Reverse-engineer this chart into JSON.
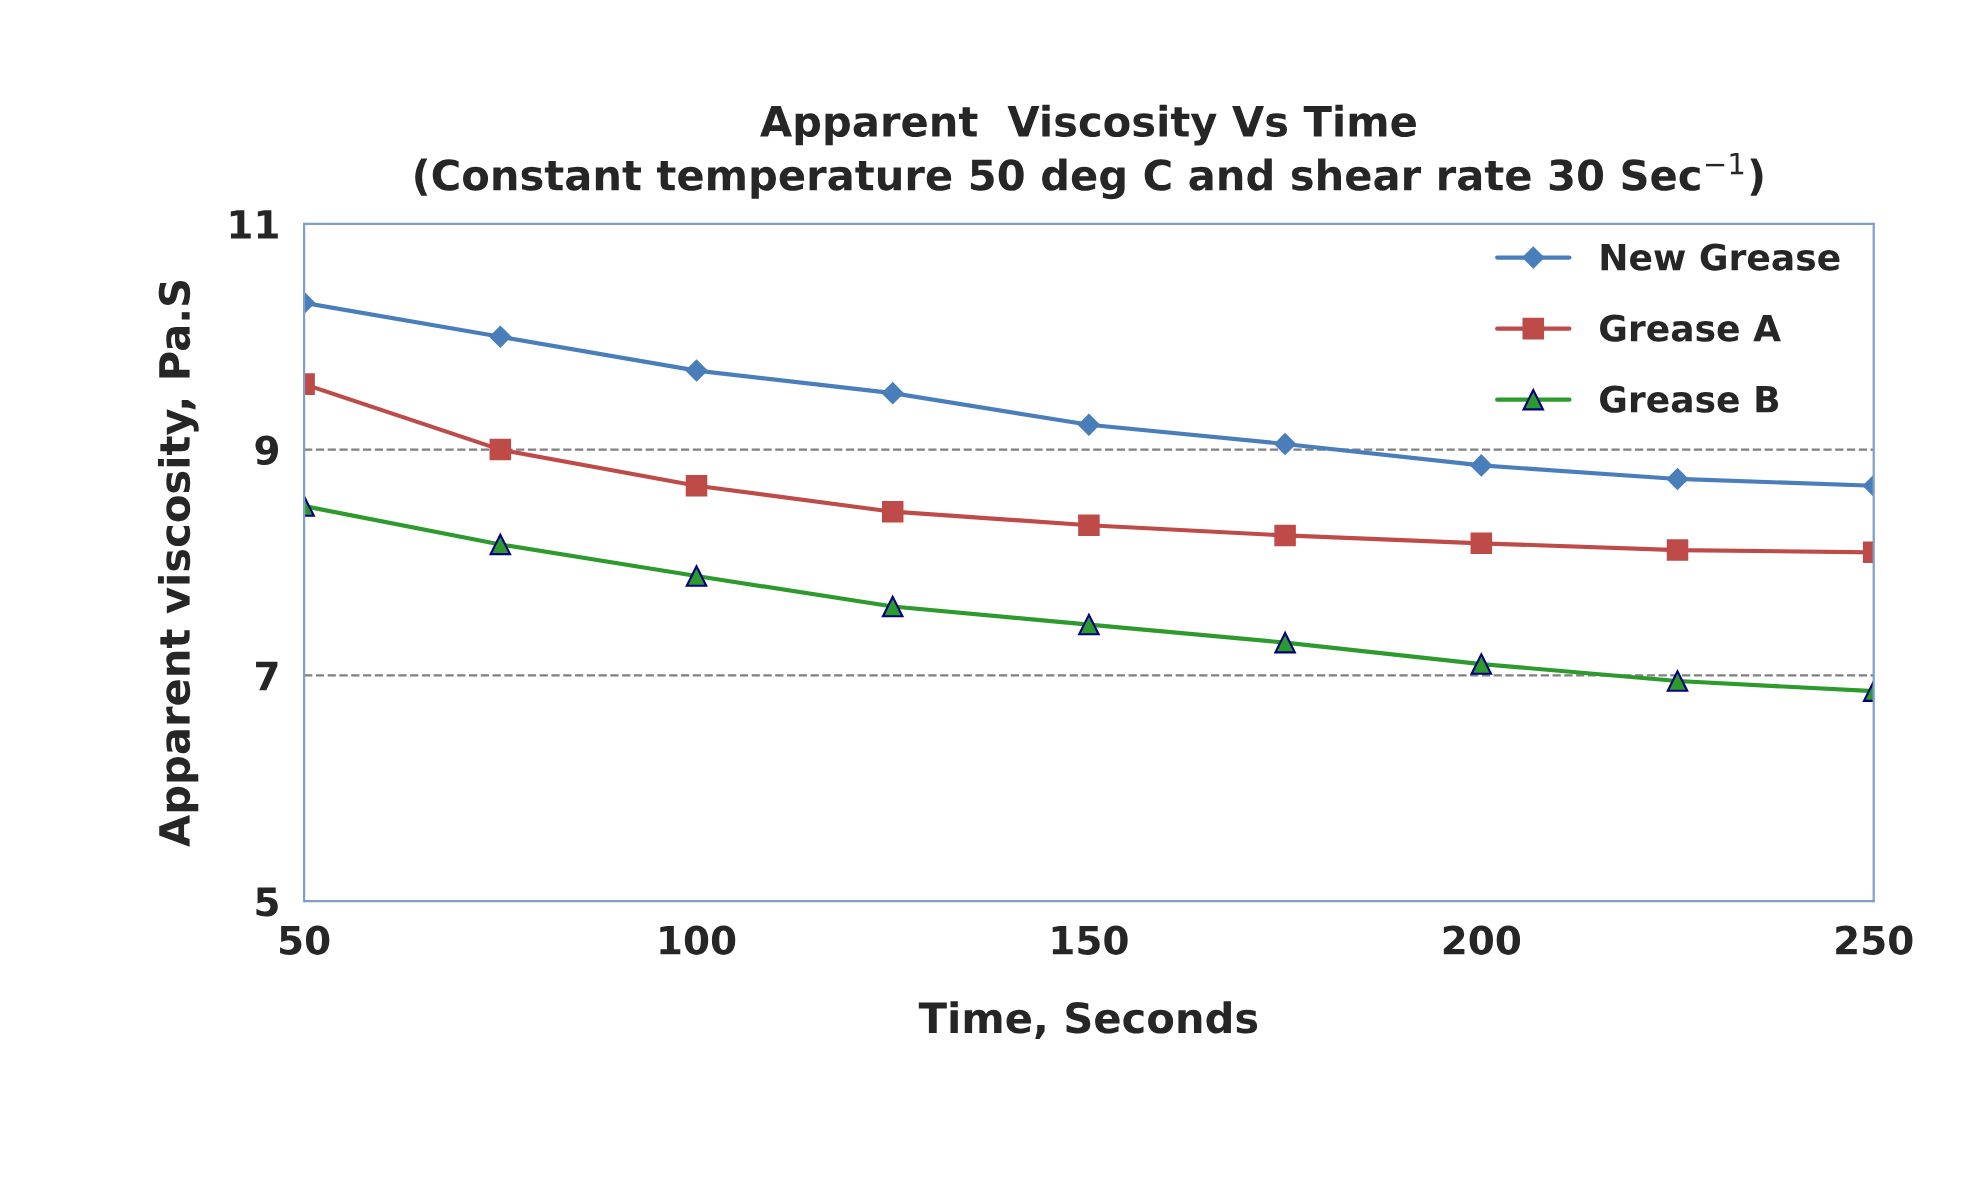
{
  "chart_data": {
    "type": "line",
    "title": "Apparent  Viscosity Vs Time\n(Constant temperature 50 deg C and shear rate 30 Sec$^{−1}$)",
    "xlabel": "Time, Seconds",
    "ylabel": "Apparent viscosity, Pa.S",
    "x": [
      50,
      75,
      100,
      125,
      150,
      175,
      200,
      225,
      250
    ],
    "series": [
      {
        "name": "New Grease",
        "color": "#4a7ebb",
        "marker": "diamond",
        "values": [
          10.3,
          10.0,
          9.7,
          9.5,
          9.22,
          9.05,
          8.86,
          8.74,
          8.68
        ]
      },
      {
        "name": "Grease A",
        "color": "#be4b48",
        "marker": "square",
        "values": [
          9.58,
          9.0,
          8.68,
          8.45,
          8.33,
          8.24,
          8.17,
          8.11,
          8.09
        ]
      },
      {
        "name": "Grease B",
        "color": "#2c9a2c",
        "marker": "triangle",
        "values": [
          8.5,
          8.16,
          7.88,
          7.61,
          7.45,
          7.29,
          7.1,
          6.95,
          6.86
        ]
      }
    ],
    "xlim": [
      50,
      250
    ],
    "xticks": [
      50,
      100,
      150,
      200,
      250
    ],
    "ylim": [
      5,
      11
    ],
    "yticks": [
      5,
      7,
      9,
      11
    ],
    "grid": "y",
    "legend": "top right",
    "line_style": "solid"
  }
}
